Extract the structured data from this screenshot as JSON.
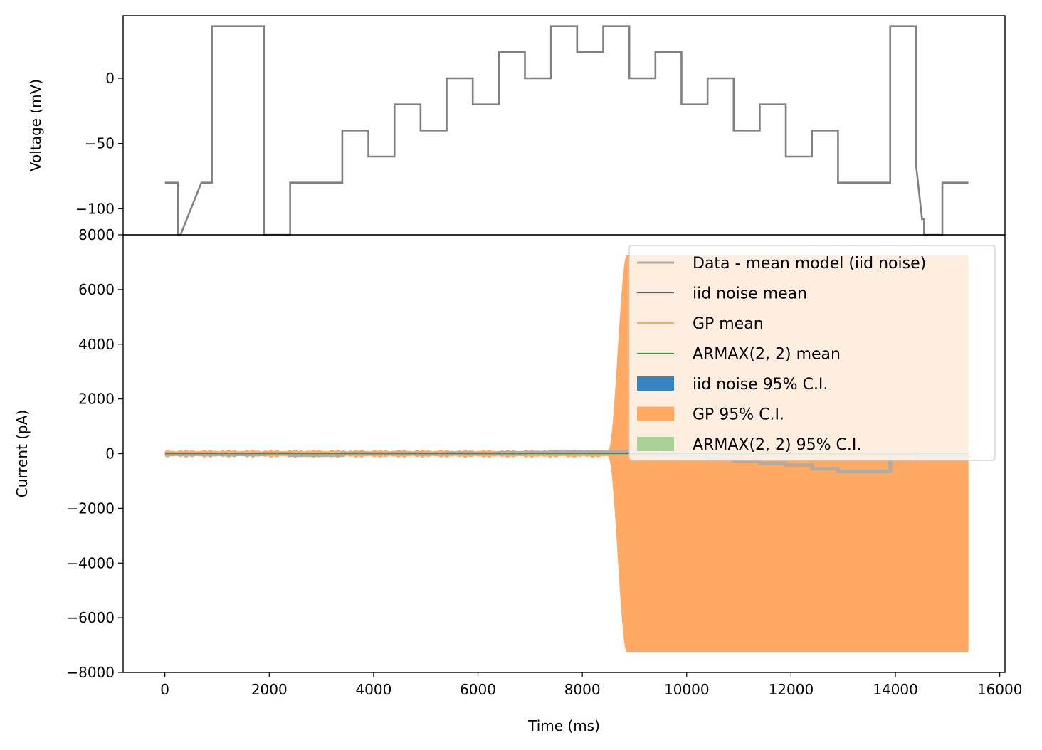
{
  "chart_data": [
    {
      "type": "line",
      "ylabel": "Voltage (mV)",
      "xlim": [
        -800,
        16100
      ],
      "ylim": [
        -120,
        48
      ],
      "yticks": [
        0,
        -50,
        -100
      ],
      "ytick_labels": [
        "0",
        "−50",
        "−100"
      ],
      "grid": false,
      "series": [
        {
          "color": "#808080",
          "x": [
            0,
            250,
            250,
            300,
            700,
            900,
            900,
            1900,
            1900,
            2400,
            2400,
            3400,
            3400,
            3900,
            3900,
            4400,
            4400,
            4900,
            4900,
            5400,
            5400,
            5900,
            5900,
            6400,
            6400,
            6900,
            6900,
            7400,
            7400,
            7900,
            7900,
            8400,
            8400,
            8900,
            8900,
            9400,
            9400,
            9900,
            9900,
            10400,
            10400,
            10900,
            10900,
            11400,
            11400,
            11900,
            11900,
            12400,
            12400,
            12900,
            12900,
            13900,
            13900,
            14400,
            14400,
            14510,
            14550,
            14550,
            14900,
            14900,
            15400
          ],
          "y": [
            -80,
            -80,
            -120,
            -120,
            -80,
            -80,
            40,
            40,
            -120,
            -120,
            -80,
            -80,
            -40,
            -40,
            -60,
            -60,
            -20,
            -20,
            -40,
            -40,
            0,
            0,
            -20,
            -20,
            20,
            20,
            0,
            0,
            40,
            40,
            20,
            20,
            40,
            40,
            0,
            0,
            20,
            20,
            -20,
            -20,
            0,
            0,
            -40,
            -40,
            -20,
            -20,
            -60,
            -60,
            -40,
            -40,
            -80,
            -80,
            40,
            40,
            -68,
            -108,
            -108,
            -120,
            -120,
            -80,
            -80
          ]
        }
      ]
    },
    {
      "type": "area",
      "xlabel": "Time (ms)",
      "ylabel": "Current (pA)",
      "xlim": [
        -800,
        16100
      ],
      "ylim": [
        -8000,
        8000
      ],
      "xticks": [
        0,
        2000,
        4000,
        6000,
        8000,
        10000,
        12000,
        14000,
        16000
      ],
      "xtick_labels": [
        "0",
        "2000",
        "4000",
        "6000",
        "8000",
        "10000",
        "12000",
        "14000",
        "16000"
      ],
      "yticks": [
        8000,
        6000,
        4000,
        2000,
        0,
        -2000,
        -4000,
        -6000,
        -8000
      ],
      "ytick_labels": [
        "8000",
        "6000",
        "4000",
        "2000",
        "0",
        "−2000",
        "−4000",
        "−6000",
        "−8000"
      ],
      "grid": false,
      "legend_position": "upper-right",
      "legend": [
        {
          "label": "Data - mean model (iid noise)",
          "kind": "line",
          "color": "#b3aca4"
        },
        {
          "label": "iid noise mean",
          "kind": "line",
          "color": "#1f77b4"
        },
        {
          "label": "GP mean",
          "kind": "line",
          "color": "#ff7f0e"
        },
        {
          "label": "ARMAX(2, 2) mean",
          "kind": "line",
          "color": "#2ca02c"
        },
        {
          "label": "iid noise 95% C.I.",
          "kind": "patch",
          "color": "#3583c0"
        },
        {
          "label": "GP 95% C.I.",
          "kind": "patch",
          "color": "#ffa962"
        },
        {
          "label": "ARMAX(2, 2) 95% C.I.",
          "kind": "patch",
          "color": "#a9d096"
        }
      ],
      "gp_ci": {
        "color": "#ffa962",
        "x_start": 0,
        "x_end": 15400,
        "early_amplitude": 150,
        "ramp_start": 8500,
        "plateau_start": 8850,
        "plateau_amplitude": 7250
      },
      "data_residual": {
        "color": "#a9a9a9",
        "x": [
          0,
          900,
          1900,
          2400,
          3400,
          3900,
          4400,
          4900,
          5400,
          5900,
          6400,
          6900,
          7400,
          7900,
          8400,
          8900,
          9400,
          9900,
          10400,
          10900,
          11400,
          11900,
          12400,
          12900,
          13900,
          14400,
          15400
        ],
        "y": [
          -20,
          -30,
          0,
          -60,
          10,
          0,
          10,
          -10,
          20,
          0,
          30,
          40,
          80,
          60,
          70,
          0,
          -50,
          -100,
          -180,
          -260,
          -350,
          -420,
          -550,
          -650,
          0,
          -100,
          0
        ]
      },
      "armax_ci": {
        "color": "#a9d096",
        "half_width": 60
      }
    }
  ]
}
